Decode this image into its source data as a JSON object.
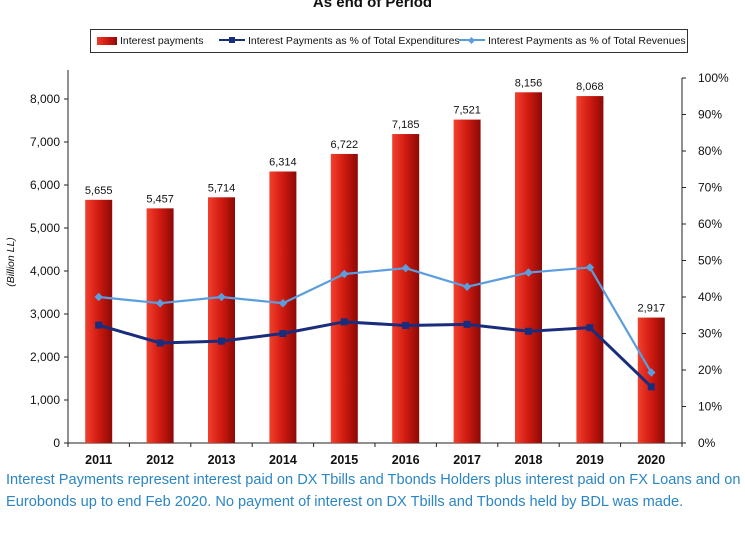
{
  "chart_data": {
    "type": "bar",
    "title": "As end of Period",
    "ylabel": "(Billion LL)",
    "ylim": [
      0,
      8500
    ],
    "y2lim": [
      0,
      100
    ],
    "yticks": [
      "0",
      "1,000",
      "2,000",
      "3,000",
      "4,000",
      "5,000",
      "6,000",
      "7,000",
      "8,000"
    ],
    "y2ticks": [
      "0%",
      "10%",
      "20%",
      "30%",
      "40%",
      "50%",
      "60%",
      "70%",
      "80%",
      "90%",
      "100%"
    ],
    "categories": [
      "2011",
      "2012",
      "2013",
      "2014",
      "2015",
      "2016",
      "2017",
      "2018",
      "2019",
      "2020"
    ],
    "series": [
      {
        "name": "Interest payments",
        "type": "bar",
        "axis": "left",
        "color": "#c8180f",
        "values": [
          5655,
          5457,
          5714,
          6314,
          6722,
          7185,
          7521,
          8156,
          8068,
          2917
        ],
        "labels": [
          "5,655",
          "5,457",
          "5,714",
          "6,314",
          "6,722",
          "7,185",
          "7,521",
          "8,156",
          "8,068",
          "2,917"
        ]
      },
      {
        "name": "Interest Payments as % of Total Expenditures",
        "type": "line",
        "axis": "right",
        "color": "#1a2d7c",
        "marker": "square",
        "values": [
          32.3,
          27.4,
          27.9,
          30.0,
          33.2,
          32.2,
          32.5,
          30.6,
          31.6,
          15.4
        ]
      },
      {
        "name": "Interest Payments as % of Total Revenues",
        "type": "line",
        "axis": "right",
        "color": "#5b9ee0",
        "marker": "diamond",
        "values": [
          40.0,
          38.3,
          40.0,
          38.3,
          46.3,
          47.9,
          42.8,
          46.7,
          48.1,
          19.3
        ]
      }
    ],
    "legend": "top",
    "grid": false
  },
  "caption": "Interest Payments represent interest paid on DX Tbills and Tbonds Holders plus interest paid on FX Loans and on Eurobonds up to end Feb 2020. No payment of interest on DX Tbills and Tbonds held by BDL was made."
}
